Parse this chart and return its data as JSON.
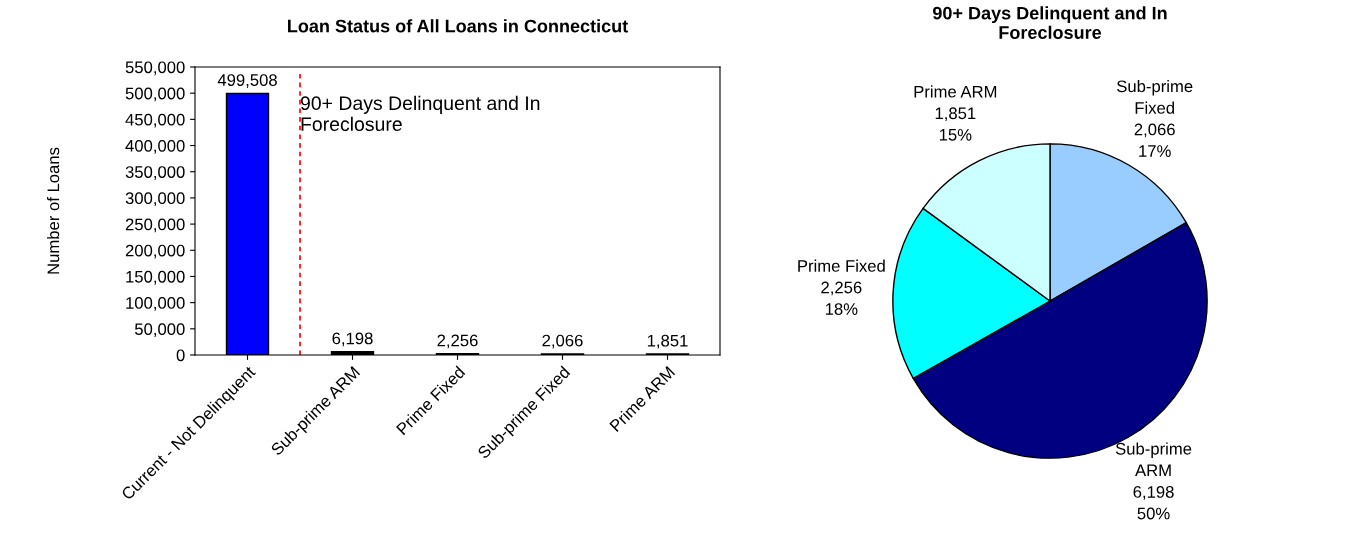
{
  "chart_data": [
    {
      "type": "bar",
      "title": "Loan Status of All Loans in Connecticut",
      "ylabel": "Number of Loans",
      "categories": [
        "Current - Not Delinquent",
        "Sub-prime ARM",
        "Prime Fixed",
        "Sub-prime Fixed",
        "Prime ARM"
      ],
      "values": [
        499508,
        6198,
        2256,
        2066,
        1851
      ],
      "colors": [
        "#0000ff",
        "#000000",
        "#000000",
        "#000000",
        "#000000"
      ],
      "ylim": [
        0,
        550000
      ],
      "yticks": [
        0,
        {
          "value": 50000,
          "label": "50,000"
        },
        {
          "value": 100000,
          "label": "100,000"
        },
        {
          "value": 150000,
          "label": "150,000"
        },
        {
          "value": 200000,
          "label": "200,000"
        },
        {
          "value": 250000,
          "label": "250,000"
        },
        {
          "value": 300000,
          "label": "300,000"
        },
        {
          "value": 350000,
          "label": "350,000"
        },
        {
          "value": 400000,
          "label": "400,000"
        },
        {
          "value": 450000,
          "label": "450,000"
        },
        {
          "value": 500000,
          "label": "500,000"
        },
        {
          "value": 550000,
          "label": "550,000"
        }
      ],
      "value_labels": [
        "499,508",
        "6,198",
        "2,256",
        "2,066",
        "1,851"
      ],
      "annotations": [
        "90+ Days Delinquent and In\nForeclosure"
      ],
      "grid": false,
      "legend": false
    },
    {
      "type": "pie",
      "title": "90+ Days Delinquent and In\nForeclosure",
      "categories": [
        "Sub-prime\nFixed",
        "Sub-prime\nARM",
        "Prime Fixed",
        "Prime ARM"
      ],
      "values": [
        2066,
        6198,
        2256,
        1851
      ],
      "colors": [
        "#99ccff",
        "#000080",
        "#00ffff",
        "#ccffff"
      ],
      "value_labels": [
        "2,066\n17%",
        "6,198\n50%",
        "2,256\n18%",
        "1,851\n15%"
      ],
      "legend": false
    }
  ]
}
